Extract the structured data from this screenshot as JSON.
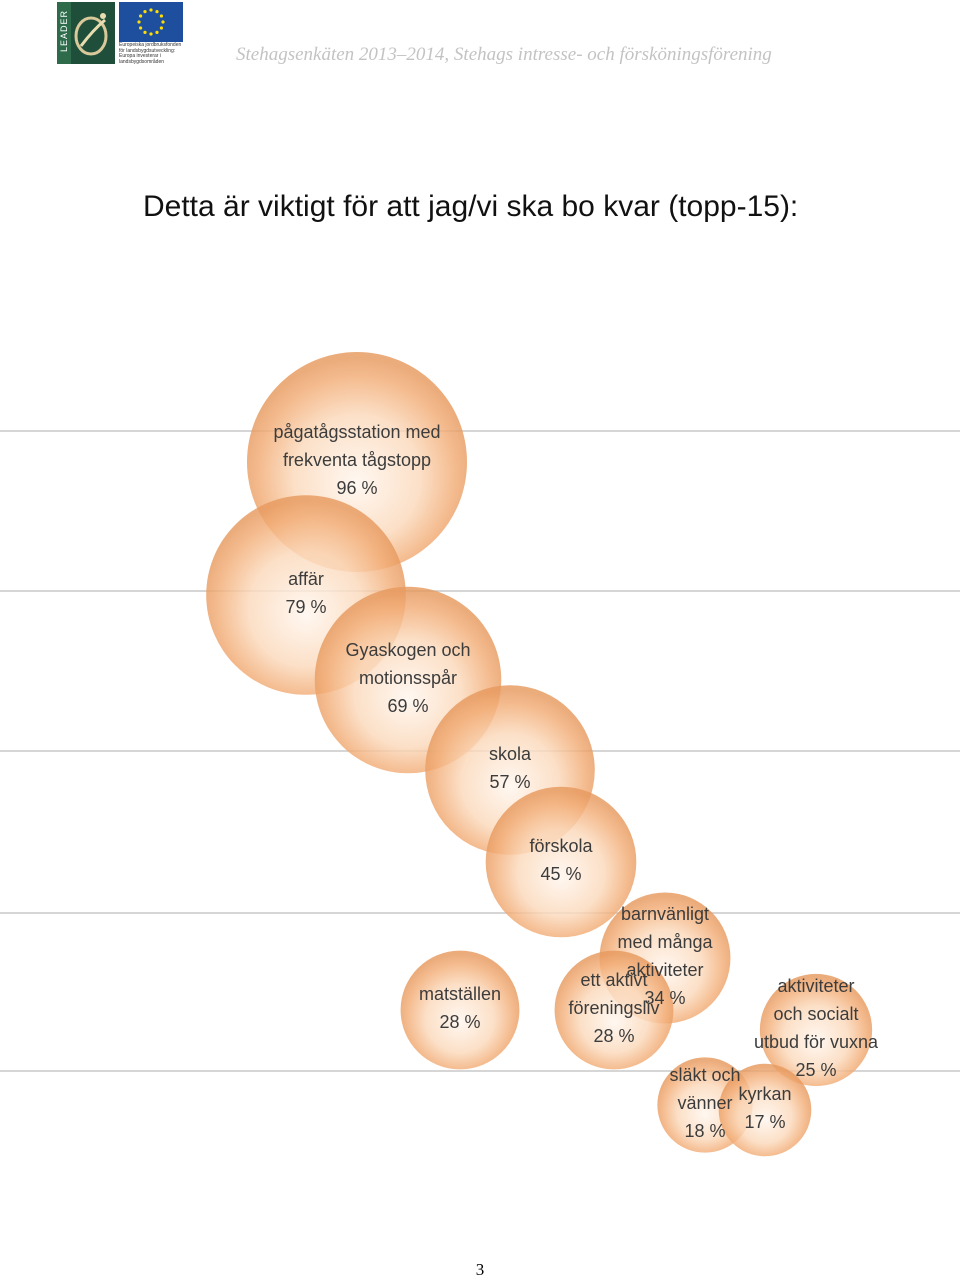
{
  "header": {
    "logo_leader_text": "LEADER",
    "eu_caption": "Europeiska jordbruksfonden för landsbygdsutveckling: Europa investerar i landsbygdsområden",
    "subtitle": "Stehagsenkäten 2013–2014, Stehags intresse- och förskönings­förening"
  },
  "title": "Detta är viktigt för att jag/vi ska bo kvar (topp-15):",
  "colors": {
    "bubble": "#f3b17c",
    "bubble_highlight": "#fff4ea",
    "bubble_edge": "#e8a26a",
    "label": "#3c3c3c"
  },
  "chart_data": {
    "type": "bubble",
    "title": "",
    "unit": "%",
    "grid": "horizontal",
    "items": [
      {
        "label_lines": [
          "pågatågsstation med",
          "frekventa tågstopp"
        ],
        "value": 96,
        "value_text": "96 %"
      },
      {
        "label_lines": [
          "affär"
        ],
        "value": 79,
        "value_text": "79 %"
      },
      {
        "label_lines": [
          "Gyaskogen och",
          "motionsspår"
        ],
        "value": 69,
        "value_text": "69 %"
      },
      {
        "label_lines": [
          "skola"
        ],
        "value": 57,
        "value_text": "57 %"
      },
      {
        "label_lines": [
          "förskola"
        ],
        "value": 45,
        "value_text": "45 %"
      },
      {
        "label_lines": [
          "barnvänligt",
          "med många",
          "aktiviteter"
        ],
        "value": 34,
        "value_text": "34 %"
      },
      {
        "label_lines": [
          "matställen"
        ],
        "value": 28,
        "value_text": "28 %"
      },
      {
        "label_lines": [
          "ett aktivt",
          "föreningsliv"
        ],
        "value": 28,
        "value_text": "28 %"
      },
      {
        "label_lines": [
          "aktiviteter",
          "och socialt",
          "utbud för vuxna"
        ],
        "value": 25,
        "value_text": "25 %"
      },
      {
        "label_lines": [
          "släkt och",
          "vänner"
        ],
        "value": 18,
        "value_text": "18 %"
      },
      {
        "label_lines": [
          "kyrkan"
        ],
        "value": 17,
        "value_text": "17 %"
      }
    ]
  },
  "footer": {
    "page_number": "3"
  }
}
